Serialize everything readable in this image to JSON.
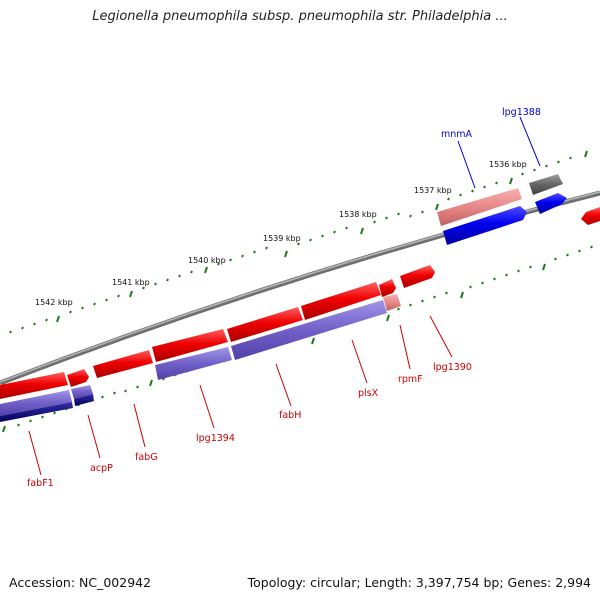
{
  "title": "Legionella pneumophila subsp. pneumophila str. Philadelphia ...",
  "accession": "Accession: NC_002942",
  "summary": "Topology: circular; Length: 3,397,754 bp; Genes: 2,994",
  "position_labels": [
    "1536 kbp",
    "1537 kbp",
    "1538 kbp",
    "1539 kbp",
    "1540 kbp",
    "1541 kbp",
    "1542 kbp"
  ],
  "gene_labels": [
    {
      "text": "lpg1388",
      "color": "#0000cc"
    },
    {
      "text": "mnmA",
      "color": "#0000cc"
    },
    {
      "text": "lpg1390",
      "color": "#cc0000"
    },
    {
      "text": "rpmF",
      "color": "#cc0000"
    },
    {
      "text": "plsX",
      "color": "#cc0000"
    },
    {
      "text": "fabH",
      "color": "#cc0000"
    },
    {
      "text": "lpg1394",
      "color": "#cc0000"
    },
    {
      "text": "fabG",
      "color": "#cc0000"
    },
    {
      "text": "acpP",
      "color": "#cc0000"
    },
    {
      "text": "fabF1",
      "color": "#cc0000"
    }
  ],
  "colors": {
    "backbone": "#808080",
    "tick": "#1a7a1a",
    "forward_gene": "#ee0000",
    "reverse_gene": "#0000ee",
    "feature_purple": "#7060c8",
    "feature_pink": "#e88888",
    "feature_gray": "#666666"
  }
}
